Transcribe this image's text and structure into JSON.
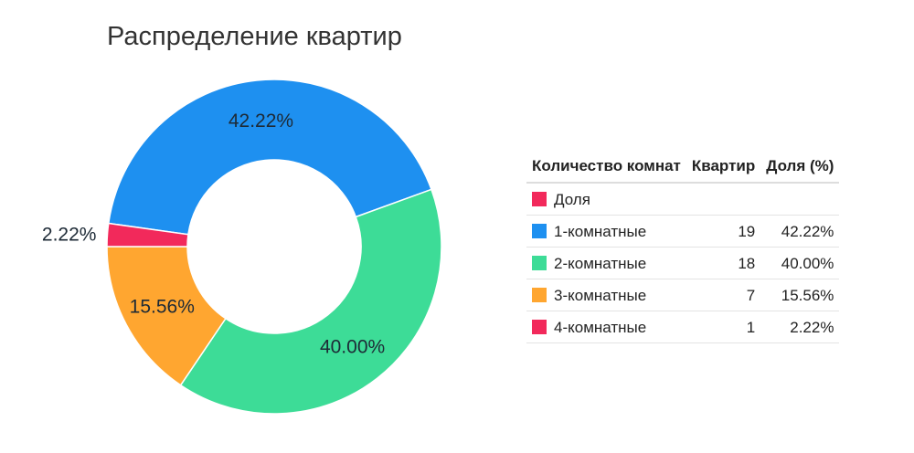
{
  "chart_data": {
    "type": "pie",
    "donut": true,
    "title": "Распределение квартир",
    "categories": [
      "1-комнатные",
      "2-комнатные",
      "3-комнатные",
      "4-комнатные"
    ],
    "values": [
      19,
      18,
      7,
      1
    ],
    "percent_labels": [
      "42.22%",
      "40.00%",
      "15.56%",
      "2.22%"
    ],
    "colors": [
      "#1e90f0",
      "#3ddc97",
      "#ffa630",
      "#f2295b"
    ],
    "legend": {
      "placement": "right",
      "headers": [
        "Количество комнат",
        "Квартир",
        "Доля (%)"
      ],
      "rows": [
        {
          "label": "Доля",
          "count": "",
          "share": "",
          "color": "#f2295b"
        },
        {
          "label": "1-комнатные",
          "count": "19",
          "share": "42.22%",
          "color": "#1e90f0"
        },
        {
          "label": "2-комнатные",
          "count": "18",
          "share": "40.00%",
          "color": "#3ddc97"
        },
        {
          "label": "3-комнатные",
          "count": "7",
          "share": "15.56%",
          "color": "#ffa630"
        },
        {
          "label": "4-комнатные",
          "count": "1",
          "share": "2.22%",
          "color": "#f2295b"
        }
      ]
    }
  }
}
